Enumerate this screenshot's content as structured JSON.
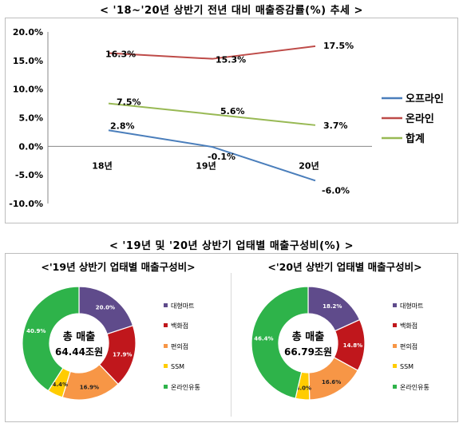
{
  "page": {
    "top_title": "< '18~'20년 상반기 전년 대비 매출증감률(%) 추세 >",
    "bottom_title": "< '19년 및 '20년 상반기 업태별 매출구성비(%) >"
  },
  "colors": {
    "offline": "#4a7ebb",
    "online": "#be4b48",
    "total": "#98b954",
    "department": "#5f4b8b",
    "dept_store": "#c0171c",
    "convenience": "#f79646",
    "ssm": "#ffcc00",
    "online_retail": "#2eb34a"
  },
  "chart_data": [
    {
      "type": "line",
      "title": "< '18~'20년 상반기 전년 대비 매출증감률(%) 추세 >",
      "categories": [
        "18년",
        "19년",
        "20년"
      ],
      "y_ticks": [
        "20.0%",
        "15.0%",
        "10.0%",
        "5.0%",
        "0.0%",
        "-5.0%",
        "-10.0%"
      ],
      "ylim": [
        -10,
        20
      ],
      "grid": false,
      "legend_position": "right",
      "series": [
        {
          "name": "오프라인",
          "values": [
            2.8,
            -0.1,
            -6.0
          ],
          "labels": [
            "2.8%",
            "-0.1%",
            "-6.0%"
          ],
          "color": "#4a7ebb"
        },
        {
          "name": "온라인",
          "values": [
            16.3,
            15.3,
            17.5
          ],
          "labels": [
            "16.3%",
            "15.3%",
            "17.5%"
          ],
          "color": "#be4b48"
        },
        {
          "name": "합계",
          "values": [
            7.5,
            5.6,
            3.7
          ],
          "labels": [
            "7.5%",
            "5.6%",
            "3.7%"
          ],
          "color": "#98b954"
        }
      ]
    },
    {
      "type": "pie",
      "title": "<'19년 상반기 업태별 매출구성비>",
      "center_label": "총 매출",
      "center_value": "64.44조원",
      "legend_position": "right",
      "slices": [
        {
          "name": "대형마트",
          "value": 20.0,
          "label": "20.0%",
          "color": "#5f4b8b"
        },
        {
          "name": "백화점",
          "value": 17.9,
          "label": "17.9%",
          "color": "#c0171c"
        },
        {
          "name": "편의점",
          "value": 16.9,
          "label": "16.9%",
          "color": "#f79646"
        },
        {
          "name": "SSM",
          "value": 4.4,
          "label": "4.4%",
          "color": "#ffcc00"
        },
        {
          "name": "온라인유통",
          "value": 40.9,
          "label": "40.9%",
          "color": "#2eb34a"
        }
      ]
    },
    {
      "type": "pie",
      "title": "<'20년 상반기 업태별 매출구성비>",
      "center_label": "총 매출",
      "center_value": "66.79조원",
      "legend_position": "right",
      "slices": [
        {
          "name": "대형마트",
          "value": 18.2,
          "label": "18.2%",
          "color": "#5f4b8b"
        },
        {
          "name": "백화점",
          "value": 14.8,
          "label": "14.8%",
          "color": "#c0171c"
        },
        {
          "name": "편의점",
          "value": 16.6,
          "label": "16.6%",
          "color": "#f79646"
        },
        {
          "name": "SSM",
          "value": 4.0,
          "label": "4.0%",
          "color": "#ffcc00"
        },
        {
          "name": "온라인유통",
          "value": 46.4,
          "label": "46.4%",
          "color": "#2eb34a"
        }
      ]
    }
  ]
}
